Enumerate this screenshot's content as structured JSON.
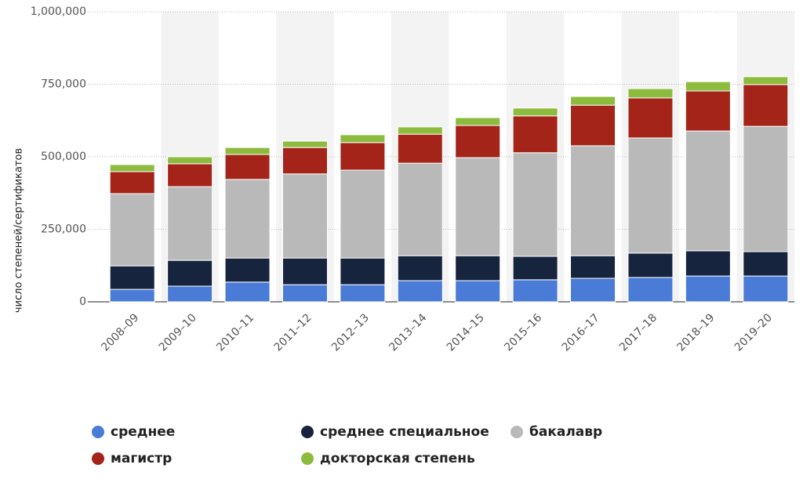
{
  "chart_data": {
    "type": "stacked-bar",
    "y_label": "число степеней/сертификатов",
    "categories": [
      "2008–09",
      "2009–10",
      "2010–11",
      "2011–12",
      "2012–13",
      "2013–14",
      "2014–15",
      "2015–16",
      "2016–17",
      "2017–18",
      "2018–19",
      "2019–20"
    ],
    "series": [
      {
        "name": "среднее",
        "color": "#4a7bd6",
        "values": [
          43000,
          54000,
          68000,
          59000,
          59000,
          73000,
          73000,
          76000,
          81000,
          84000,
          89000,
          89000
        ]
      },
      {
        "name": "среднее специальное",
        "color": "#16243e",
        "values": [
          81000,
          89000,
          83000,
          92000,
          92000,
          86000,
          86000,
          81000,
          78000,
          84000,
          87000,
          84000
        ]
      },
      {
        "name": "бакалавр",
        "color": "#b9b9b9",
        "values": [
          249000,
          254000,
          271000,
          290000,
          303000,
          319000,
          338000,
          357000,
          379000,
          397000,
          413000,
          432000
        ]
      },
      {
        "name": "магистр",
        "color": "#a52419",
        "values": [
          76000,
          79000,
          86000,
          91000,
          95000,
          100000,
          111000,
          127000,
          140000,
          138000,
          138000,
          144000
        ]
      },
      {
        "name": "докторская степень",
        "color": "#8dbb3e",
        "values": [
          24000,
          24000,
          24000,
          22000,
          27000,
          25000,
          27000,
          27000,
          30000,
          32000,
          32000,
          27000
        ]
      }
    ],
    "ylim": [
      0,
      1000000
    ],
    "yticks": [
      0,
      {
        "value": 250000,
        "label": "250,000"
      },
      {
        "value": 500000,
        "label": "500,000"
      },
      {
        "value": 750000,
        "label": "750,000"
      },
      {
        "value": 1000000,
        "label": "1,000,000"
      }
    ],
    "grid": true
  }
}
